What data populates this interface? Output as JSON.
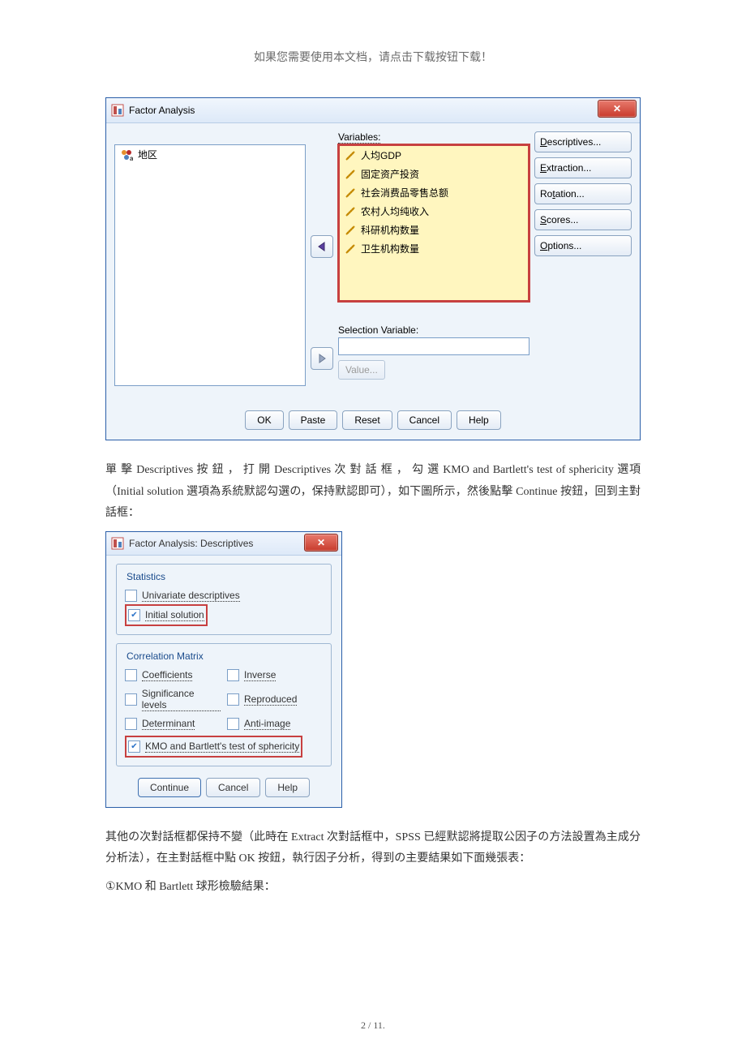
{
  "header_note": "如果您需要使用本文档，请点击下载按钮下载！",
  "dialog1": {
    "title": "Factor Analysis",
    "left_label": "",
    "left_items": [
      {
        "icon": "nom",
        "text": "地区"
      }
    ],
    "variables_label": "Variables:",
    "var_items": [
      "人均GDP",
      "固定资产投资",
      "社会消费品零售总额",
      "农村人均纯收入",
      "科研机构数量",
      "卫生机构数量"
    ],
    "selection_label": "Selection Variable:",
    "value_btn": "Value...",
    "side_buttons": [
      {
        "ul": "D",
        "text": "escriptives..."
      },
      {
        "ul": "E",
        "text": "xtraction..."
      },
      {
        "ul": "",
        "before": "Ro",
        "ul2": "t",
        "text": "ation..."
      },
      {
        "ul": "S",
        "text": "cores..."
      },
      {
        "ul": "O",
        "text": "ptions..."
      }
    ],
    "buttons": {
      "ok": "OK",
      "paste": "Paste",
      "reset": "Reset",
      "cancel": "Cancel",
      "help": "Help"
    }
  },
  "para1": "單 擊 Descriptives 按 鈕 ， 打 開 Descriptives 次 對 話 框 ， 勾 選 KMO and Bartlett's test of sphericity 選項（Initial solution 選項為系統默認勾選の，保持默認即可），如下圖所示，然後點擊 Continue 按鈕，回到主對話框：",
  "dialog2": {
    "title": "Factor Analysis: Descriptives",
    "fs1": {
      "title": "Statistics",
      "items": [
        {
          "checked": false,
          "text": "Univariate descriptives",
          "ul": "U"
        },
        {
          "checked": true,
          "text": "Initial solution",
          "ul": "I",
          "red": true
        }
      ]
    },
    "fs2": {
      "title": "Correlation Matrix",
      "rows": [
        [
          {
            "checked": false,
            "text": "Coefficients",
            "ul": "C"
          },
          {
            "checked": false,
            "text": "Inverse",
            "ul": "n",
            "before": "I"
          }
        ],
        [
          {
            "checked": false,
            "text": "Significance levels",
            "ul": "S"
          },
          {
            "checked": false,
            "text": "Reproduced",
            "ul": "R"
          }
        ],
        [
          {
            "checked": false,
            "text": "Determinant",
            "ul": "D"
          },
          {
            "checked": false,
            "text": "Anti-image",
            "ul": "A"
          }
        ]
      ],
      "kmo": {
        "checked": true,
        "text": "KMO and Bartlett's test of sphericity",
        "ul": "K",
        "red": true
      }
    },
    "buttons": {
      "continue": "Continue",
      "cancel": "Cancel",
      "help": "Help"
    }
  },
  "para2": "其他の次對話框都保持不變（此時在 Extract 次對話框中，SPSS 已經默認將提取公因子の方法設置為主成分分析法），在主對話框中點 OK 按鈕，執行因子分析，得到の主要結果如下面幾張表：",
  "para3": "①KMO 和 Bartlett 球形檢驗結果：",
  "footer": "2 / 11."
}
